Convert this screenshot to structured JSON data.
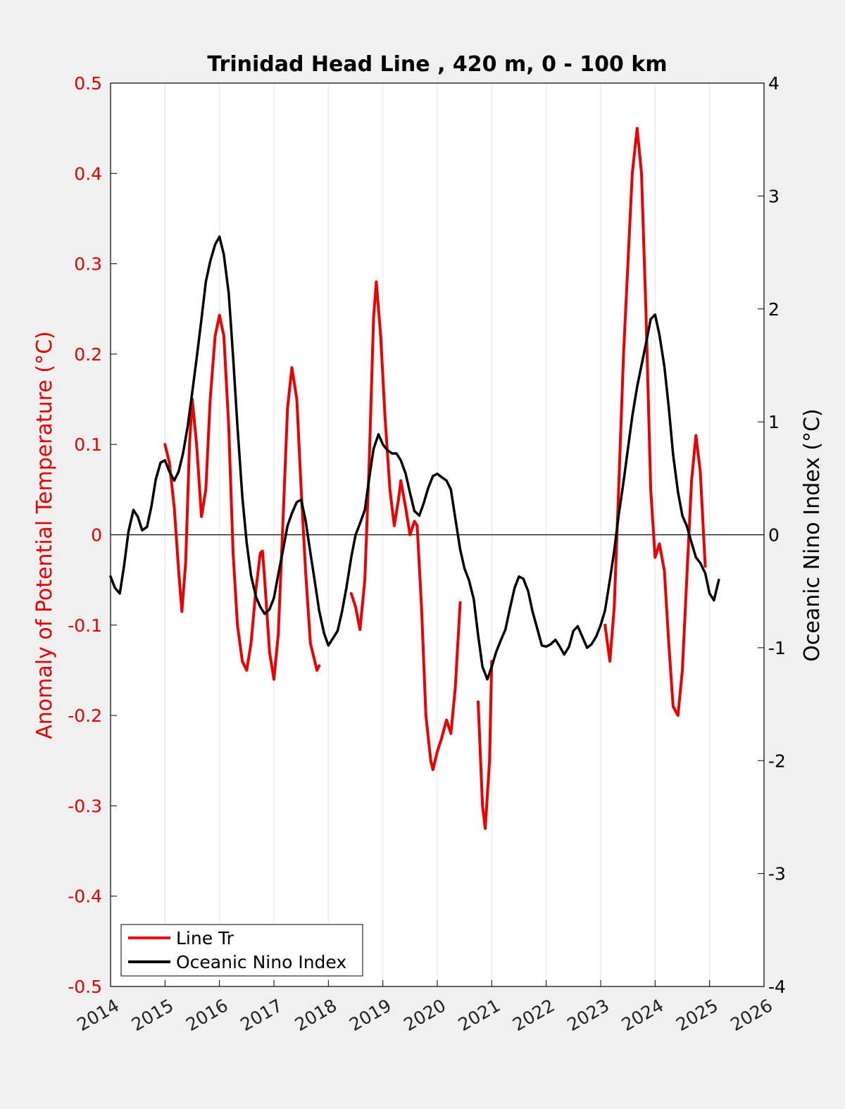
{
  "chart_data": {
    "type": "line",
    "title": "Trinidad Head Line , 420 m, 0 - 100 km",
    "ylabel_left": "Anomaly of Potential Temperature (°C)",
    "ylabel_right": "Oceanic Nino Index (°C)",
    "xlim": [
      2014,
      2026
    ],
    "ylim_left": [
      -0.5,
      0.5
    ],
    "ylim_right": [
      -4,
      4
    ],
    "x_ticks": [
      "2014",
      "2015",
      "2016",
      "2017",
      "2018",
      "2019",
      "2020",
      "2021",
      "2022",
      "2023",
      "2024",
      "2025",
      "2026"
    ],
    "y_left_ticks": [
      "0.5",
      "0.4",
      "0.3",
      "0.2",
      "0.1",
      "0",
      "-0.1",
      "-0.2",
      "-0.3",
      "-0.4",
      "-0.5"
    ],
    "y_right_ticks": [
      "4",
      "3",
      "2",
      "1",
      "0",
      "-1",
      "-2",
      "-3",
      "-4"
    ],
    "grid": "vertical",
    "legend_position": "bottom-left",
    "colors": {
      "line_tr": "#ee0000",
      "oni": "#000000"
    },
    "series": [
      {
        "name": "Line Tr",
        "axis": "left",
        "segments": [
          [
            [
              2015.0,
              0.1
            ],
            [
              2015.08,
              0.08
            ],
            [
              2015.17,
              0.03
            ],
            [
              2015.25,
              -0.04
            ],
            [
              2015.31,
              -0.085
            ],
            [
              2015.38,
              -0.03
            ],
            [
              2015.45,
              0.1
            ],
            [
              2015.5,
              0.15
            ],
            [
              2015.58,
              0.1
            ],
            [
              2015.67,
              0.02
            ],
            [
              2015.75,
              0.05
            ],
            [
              2015.83,
              0.15
            ],
            [
              2015.92,
              0.22
            ],
            [
              2016.0,
              0.243
            ],
            [
              2016.08,
              0.22
            ],
            [
              2016.17,
              0.12
            ],
            [
              2016.25,
              -0.02
            ],
            [
              2016.33,
              -0.1
            ],
            [
              2016.42,
              -0.14
            ],
            [
              2016.5,
              -0.15
            ],
            [
              2016.58,
              -0.12
            ],
            [
              2016.67,
              -0.06
            ],
            [
              2016.75,
              -0.02
            ],
            [
              2016.79,
              -0.018
            ],
            [
              2016.83,
              -0.05
            ],
            [
              2016.92,
              -0.13
            ],
            [
              2017.0,
              -0.16
            ],
            [
              2017.08,
              -0.11
            ],
            [
              2017.17,
              0.02
            ],
            [
              2017.25,
              0.14
            ],
            [
              2017.33,
              0.185
            ],
            [
              2017.42,
              0.15
            ],
            [
              2017.5,
              0.05
            ],
            [
              2017.58,
              -0.04
            ],
            [
              2017.67,
              -0.12
            ],
            [
              2017.75,
              -0.14
            ],
            [
              2017.79,
              -0.15
            ],
            [
              2017.83,
              -0.145
            ]
          ],
          [
            [
              2018.42,
              -0.065
            ],
            [
              2018.5,
              -0.08
            ],
            [
              2018.58,
              -0.105
            ],
            [
              2018.67,
              -0.05
            ],
            [
              2018.75,
              0.08
            ],
            [
              2018.83,
              0.24
            ],
            [
              2018.88,
              0.28
            ],
            [
              2018.96,
              0.22
            ],
            [
              2019.04,
              0.13
            ],
            [
              2019.13,
              0.05
            ],
            [
              2019.21,
              0.01
            ],
            [
              2019.29,
              0.04
            ],
            [
              2019.33,
              0.06
            ],
            [
              2019.42,
              0.03
            ],
            [
              2019.5,
              0.0
            ],
            [
              2019.58,
              0.015
            ],
            [
              2019.63,
              0.01
            ],
            [
              2019.71,
              -0.08
            ],
            [
              2019.79,
              -0.2
            ],
            [
              2019.88,
              -0.25
            ],
            [
              2019.92,
              -0.26
            ],
            [
              2020.0,
              -0.24
            ],
            [
              2020.08,
              -0.225
            ],
            [
              2020.17,
              -0.205
            ],
            [
              2020.25,
              -0.22
            ],
            [
              2020.33,
              -0.17
            ],
            [
              2020.42,
              -0.075
            ]
          ],
          [
            [
              2020.75,
              -0.185
            ],
            [
              2020.83,
              -0.3
            ],
            [
              2020.88,
              -0.325
            ],
            [
              2020.96,
              -0.25
            ],
            [
              2021.0,
              -0.14
            ]
          ],
          [
            [
              2023.08,
              -0.1
            ],
            [
              2023.17,
              -0.14
            ],
            [
              2023.25,
              -0.08
            ],
            [
              2023.33,
              0.05
            ],
            [
              2023.42,
              0.2
            ],
            [
              2023.5,
              0.3
            ],
            [
              2023.58,
              0.4
            ],
            [
              2023.67,
              0.45
            ],
            [
              2023.75,
              0.4
            ],
            [
              2023.83,
              0.25
            ],
            [
              2023.92,
              0.05
            ],
            [
              2024.0,
              -0.025
            ],
            [
              2024.08,
              -0.01
            ],
            [
              2024.17,
              -0.04
            ],
            [
              2024.25,
              -0.12
            ],
            [
              2024.33,
              -0.19
            ],
            [
              2024.42,
              -0.2
            ],
            [
              2024.5,
              -0.15
            ],
            [
              2024.58,
              -0.05
            ],
            [
              2024.67,
              0.06
            ],
            [
              2024.75,
              0.11
            ],
            [
              2024.83,
              0.07
            ],
            [
              2024.92,
              -0.035
            ]
          ]
        ]
      },
      {
        "name": "Oceanic Nino Index",
        "axis": "right",
        "segments": [
          [
            [
              2014.0,
              -0.37
            ],
            [
              2014.08,
              -0.47
            ],
            [
              2014.17,
              -0.52
            ],
            [
              2014.25,
              -0.27
            ],
            [
              2014.33,
              0.03
            ],
            [
              2014.42,
              0.22
            ],
            [
              2014.5,
              0.16
            ],
            [
              2014.58,
              0.04
            ],
            [
              2014.67,
              0.07
            ],
            [
              2014.75,
              0.25
            ],
            [
              2014.83,
              0.49
            ],
            [
              2014.92,
              0.64
            ],
            [
              2015.0,
              0.66
            ],
            [
              2015.08,
              0.56
            ],
            [
              2015.17,
              0.48
            ],
            [
              2015.25,
              0.56
            ],
            [
              2015.33,
              0.72
            ],
            [
              2015.42,
              0.97
            ],
            [
              2015.5,
              1.26
            ],
            [
              2015.58,
              1.56
            ],
            [
              2015.67,
              1.91
            ],
            [
              2015.75,
              2.24
            ],
            [
              2015.83,
              2.42
            ],
            [
              2015.92,
              2.57
            ],
            [
              2016.0,
              2.64
            ],
            [
              2016.08,
              2.48
            ],
            [
              2016.17,
              2.14
            ],
            [
              2016.25,
              1.58
            ],
            [
              2016.33,
              0.96
            ],
            [
              2016.42,
              0.34
            ],
            [
              2016.5,
              -0.07
            ],
            [
              2016.58,
              -0.36
            ],
            [
              2016.67,
              -0.55
            ],
            [
              2016.75,
              -0.64
            ],
            [
              2016.83,
              -0.7
            ],
            [
              2016.92,
              -0.66
            ],
            [
              2017.0,
              -0.56
            ],
            [
              2017.08,
              -0.35
            ],
            [
              2017.17,
              -0.13
            ],
            [
              2017.25,
              0.08
            ],
            [
              2017.33,
              0.19
            ],
            [
              2017.42,
              0.29
            ],
            [
              2017.5,
              0.31
            ],
            [
              2017.58,
              0.13
            ],
            [
              2017.67,
              -0.16
            ],
            [
              2017.75,
              -0.41
            ],
            [
              2017.83,
              -0.67
            ],
            [
              2017.92,
              -0.87
            ],
            [
              2018.0,
              -0.98
            ],
            [
              2018.08,
              -0.92
            ],
            [
              2018.17,
              -0.85
            ],
            [
              2018.25,
              -0.68
            ],
            [
              2018.33,
              -0.47
            ],
            [
              2018.42,
              -0.2
            ],
            [
              2018.5,
              0.0
            ],
            [
              2018.58,
              0.1
            ],
            [
              2018.67,
              0.22
            ],
            [
              2018.75,
              0.5
            ],
            [
              2018.83,
              0.76
            ],
            [
              2018.92,
              0.89
            ],
            [
              2019.0,
              0.8
            ],
            [
              2019.08,
              0.75
            ],
            [
              2019.17,
              0.72
            ],
            [
              2019.25,
              0.72
            ],
            [
              2019.33,
              0.66
            ],
            [
              2019.42,
              0.54
            ],
            [
              2019.5,
              0.37
            ],
            [
              2019.58,
              0.21
            ],
            [
              2019.67,
              0.17
            ],
            [
              2019.75,
              0.28
            ],
            [
              2019.83,
              0.41
            ],
            [
              2019.92,
              0.52
            ],
            [
              2020.0,
              0.54
            ],
            [
              2020.08,
              0.51
            ],
            [
              2020.17,
              0.48
            ],
            [
              2020.25,
              0.4
            ],
            [
              2020.33,
              0.15
            ],
            [
              2020.42,
              -0.13
            ],
            [
              2020.5,
              -0.3
            ],
            [
              2020.58,
              -0.4
            ],
            [
              2020.67,
              -0.57
            ],
            [
              2020.75,
              -0.89
            ],
            [
              2020.83,
              -1.17
            ],
            [
              2020.92,
              -1.28
            ],
            [
              2021.0,
              -1.17
            ],
            [
              2021.08,
              -1.04
            ],
            [
              2021.17,
              -0.93
            ],
            [
              2021.25,
              -0.84
            ],
            [
              2021.33,
              -0.66
            ],
            [
              2021.42,
              -0.47
            ],
            [
              2021.5,
              -0.37
            ],
            [
              2021.58,
              -0.39
            ],
            [
              2021.67,
              -0.5
            ],
            [
              2021.75,
              -0.68
            ],
            [
              2021.83,
              -0.82
            ],
            [
              2021.92,
              -0.98
            ],
            [
              2022.0,
              -0.99
            ],
            [
              2022.08,
              -0.97
            ],
            [
              2022.17,
              -0.93
            ],
            [
              2022.25,
              -0.99
            ],
            [
              2022.33,
              -1.06
            ],
            [
              2022.42,
              -0.99
            ],
            [
              2022.5,
              -0.85
            ],
            [
              2022.58,
              -0.81
            ],
            [
              2022.67,
              -0.91
            ],
            [
              2022.75,
              -1.0
            ],
            [
              2022.83,
              -0.97
            ],
            [
              2022.92,
              -0.9
            ],
            [
              2023.0,
              -0.8
            ],
            [
              2023.08,
              -0.67
            ],
            [
              2023.17,
              -0.4
            ],
            [
              2023.25,
              -0.14
            ],
            [
              2023.33,
              0.17
            ],
            [
              2023.42,
              0.47
            ],
            [
              2023.5,
              0.76
            ],
            [
              2023.58,
              1.05
            ],
            [
              2023.67,
              1.31
            ],
            [
              2023.75,
              1.5
            ],
            [
              2023.83,
              1.69
            ],
            [
              2023.92,
              1.91
            ],
            [
              2024.0,
              1.95
            ],
            [
              2024.08,
              1.77
            ],
            [
              2024.17,
              1.49
            ],
            [
              2024.25,
              1.13
            ],
            [
              2024.33,
              0.71
            ],
            [
              2024.42,
              0.38
            ],
            [
              2024.5,
              0.17
            ],
            [
              2024.58,
              0.08
            ],
            [
              2024.67,
              -0.07
            ],
            [
              2024.75,
              -0.2
            ],
            [
              2024.83,
              -0.25
            ],
            [
              2024.92,
              -0.34
            ],
            [
              2025.0,
              -0.52
            ],
            [
              2025.08,
              -0.58
            ],
            [
              2025.17,
              -0.4
            ]
          ]
        ]
      }
    ]
  }
}
